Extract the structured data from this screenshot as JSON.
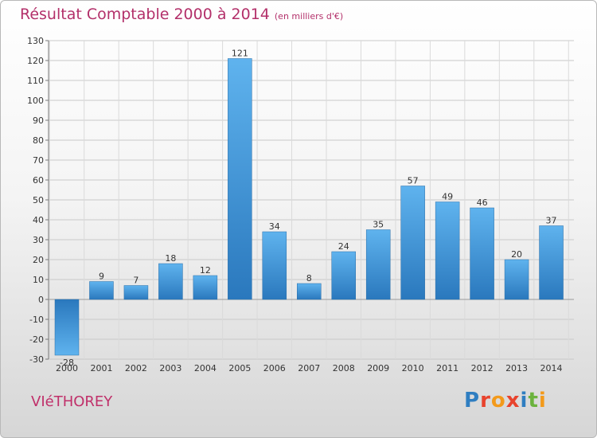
{
  "title": "Résultat Comptable 2000 à 2014",
  "unit": "(en milliers d'€)",
  "place": "VIéTHOREY",
  "logo": {
    "text": "Proxiti",
    "letters": [
      "P",
      "r",
      "o",
      "x",
      "i",
      "t",
      "i"
    ],
    "colors": [
      "#2f7ec1",
      "#e8432d",
      "#f39a1b",
      "#e8432d",
      "#2f7ec1",
      "#6bb33e",
      "#f39a1b"
    ]
  },
  "chart_data": {
    "type": "bar",
    "title": "Résultat Comptable 2000 à 2014",
    "ylabel": "(en milliers d'€)",
    "categories": [
      "2000",
      "2001",
      "2002",
      "2003",
      "2004",
      "2005",
      "2006",
      "2007",
      "2008",
      "2009",
      "2010",
      "2011",
      "2012",
      "2013",
      "2014"
    ],
    "values": [
      -28,
      9,
      7,
      18,
      12,
      121,
      34,
      8,
      24,
      35,
      57,
      49,
      46,
      20,
      37
    ],
    "labels": [
      "-28",
      "9",
      "7",
      "18",
      "12",
      "121",
      "34",
      "8",
      "24",
      "35",
      "57",
      "49",
      "46",
      "20",
      "37"
    ],
    "ylim": [
      -30,
      130
    ],
    "yticks": [
      -30,
      -20,
      -10,
      0,
      10,
      20,
      30,
      40,
      50,
      60,
      70,
      80,
      90,
      100,
      110,
      120,
      130
    ],
    "ytick_labels": [
      "-30",
      "-20",
      "-10",
      "0",
      "10",
      "20",
      "30",
      "40",
      "50",
      "60",
      "70",
      "80",
      "90",
      "100",
      "110",
      "120",
      "130"
    ],
    "grid": true,
    "bar_color": "#4a9ee0"
  }
}
